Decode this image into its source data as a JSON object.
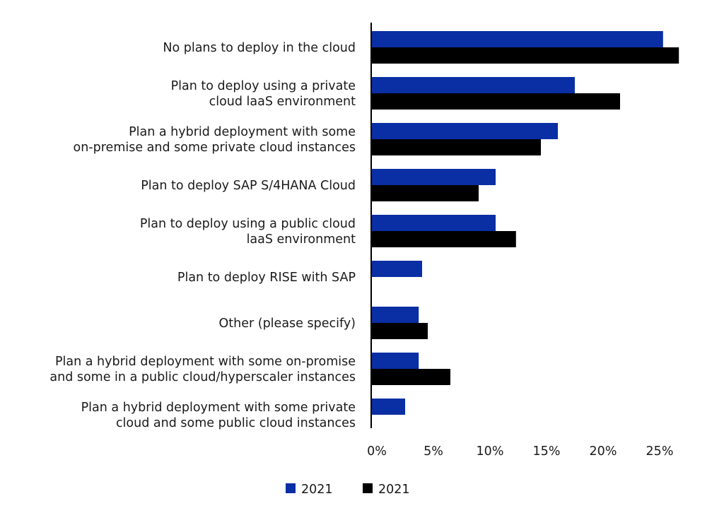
{
  "chart_data": {
    "type": "bar",
    "orientation": "horizontal",
    "title": "",
    "xlabel": "",
    "ylabel": "",
    "xlim": [
      0,
      27.5
    ],
    "ticks": [
      0,
      5,
      10,
      15,
      20,
      25
    ],
    "tick_labels": [
      "0%",
      "5%",
      "10%",
      "15%",
      "20%",
      "25%"
    ],
    "grid": false,
    "legend_position": "bottom",
    "categories": [
      [
        "No plans to deploy in the cloud"
      ],
      [
        "Plan to deploy using a private",
        "cloud laaS environment"
      ],
      [
        "Plan a hybrid deployment with some",
        "on-premise and some private cloud instances"
      ],
      [
        "Plan to deploy SAP S/4HANA Cloud"
      ],
      [
        "Plan to deploy using a public cloud",
        "laaS environment"
      ],
      [
        "Plan to deploy RISE with SAP"
      ],
      [
        "Other (please specify)"
      ],
      [
        "Plan a hybrid deployment with some on-promise",
        "and some in a public cloud/hyperscaler instances"
      ],
      [
        "Plan a hybrid deployment with some private",
        "cloud and some public cloud instances"
      ]
    ],
    "series": [
      {
        "name": "2021",
        "color": "#0a2ea3",
        "values": [
          25.8,
          18.0,
          16.5,
          11.0,
          11.0,
          4.5,
          4.2,
          4.2,
          3.0
        ]
      },
      {
        "name": "2021",
        "color": "#000000",
        "values": [
          27.2,
          22.0,
          15.0,
          9.5,
          12.8,
          null,
          5.0,
          7.0,
          null
        ]
      }
    ]
  }
}
